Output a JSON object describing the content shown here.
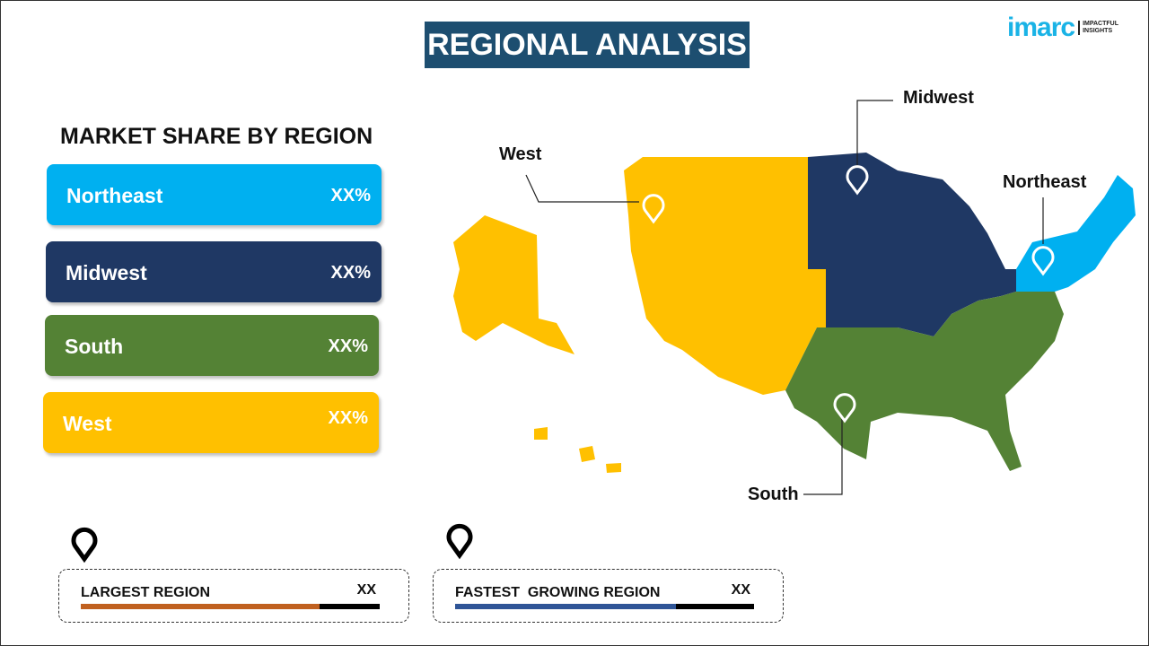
{
  "header": {
    "title": "REGIONAL ANALYSIS",
    "logo_text": "imarc",
    "logo_tagline": "IMPACTFUL INSIGHTS"
  },
  "market_share": {
    "title": "MARKET SHARE BY REGION",
    "regions": [
      {
        "name": "Northeast",
        "value": "XX%",
        "color": "#00b0f0"
      },
      {
        "name": "Midwest",
        "value": "XX%",
        "color": "#1f3864"
      },
      {
        "name": "South",
        "value": "XX%",
        "color": "#548235"
      },
      {
        "name": "West",
        "value": "XX%",
        "color": "#ffc000"
      }
    ]
  },
  "map": {
    "labels": {
      "west": "West",
      "midwest": "Midwest",
      "northeast": "Northeast",
      "south": "South"
    }
  },
  "summary": [
    {
      "label": "LARGEST REGION",
      "value": "XX",
      "progress": 0.8,
      "color": "#c0601f",
      "icon": "location-pin-icon"
    },
    {
      "label": "FASTEST  GROWING REGION",
      "value": "XX",
      "progress": 0.74,
      "color": "#2f5597",
      "icon": "location-pin-icon"
    }
  ]
}
